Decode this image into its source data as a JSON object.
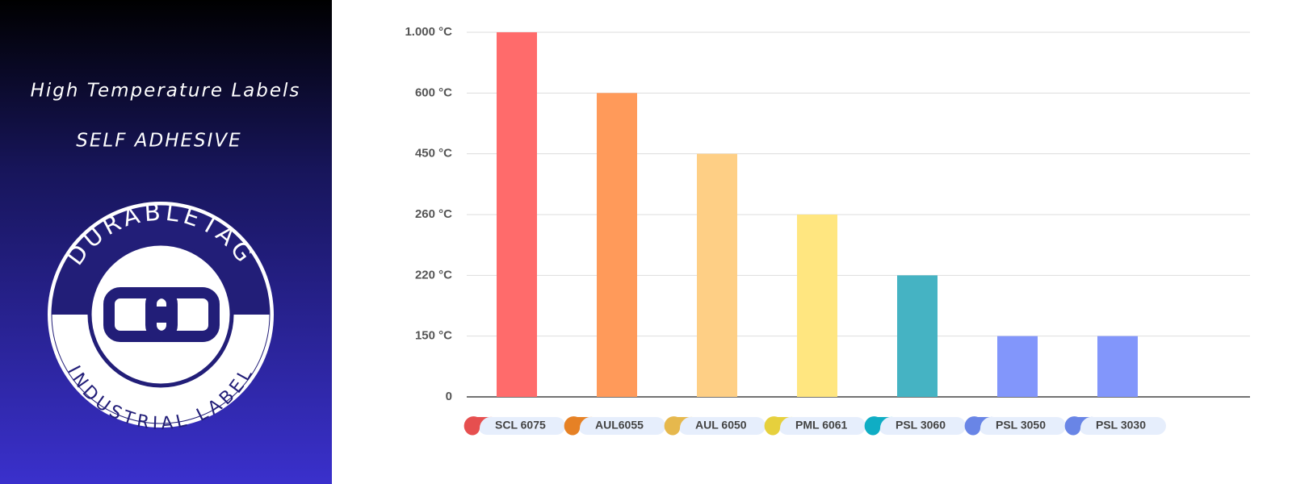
{
  "panel": {
    "title": "High Temperature Labels",
    "subtitle": "SELF ADHESIVE",
    "logo_top": "DURABLETAG",
    "logo_bottom": "INDUSTRIAL LABEL"
  },
  "chart_data": {
    "type": "bar",
    "categories": [
      "SCL 6075",
      "AUL6055",
      "AUL 6050",
      "PML 6061",
      "PSL 3060",
      "PSL 3050",
      "PSL 3030"
    ],
    "values": [
      1000,
      600,
      450,
      260,
      220,
      150,
      150
    ],
    "colors": [
      "#ff6b6b",
      "#ff9a5a",
      "#fecf85",
      "#ffe680",
      "#45b3c3",
      "#8296fb",
      "#8296fb"
    ],
    "ylim": [
      0,
      1000
    ],
    "yticks": [
      0,
      {
        "value": 150,
        "label": "150 °C"
      },
      {
        "value": 220,
        "label": "220 °C"
      },
      {
        "value": 260,
        "label": "260 °C"
      },
      {
        "value": 450,
        "label": "450 °C"
      },
      {
        "value": 600,
        "label": "600 °C"
      },
      {
        "value": 1000,
        "label": "1.000 °C"
      }
    ],
    "grid": true
  }
}
